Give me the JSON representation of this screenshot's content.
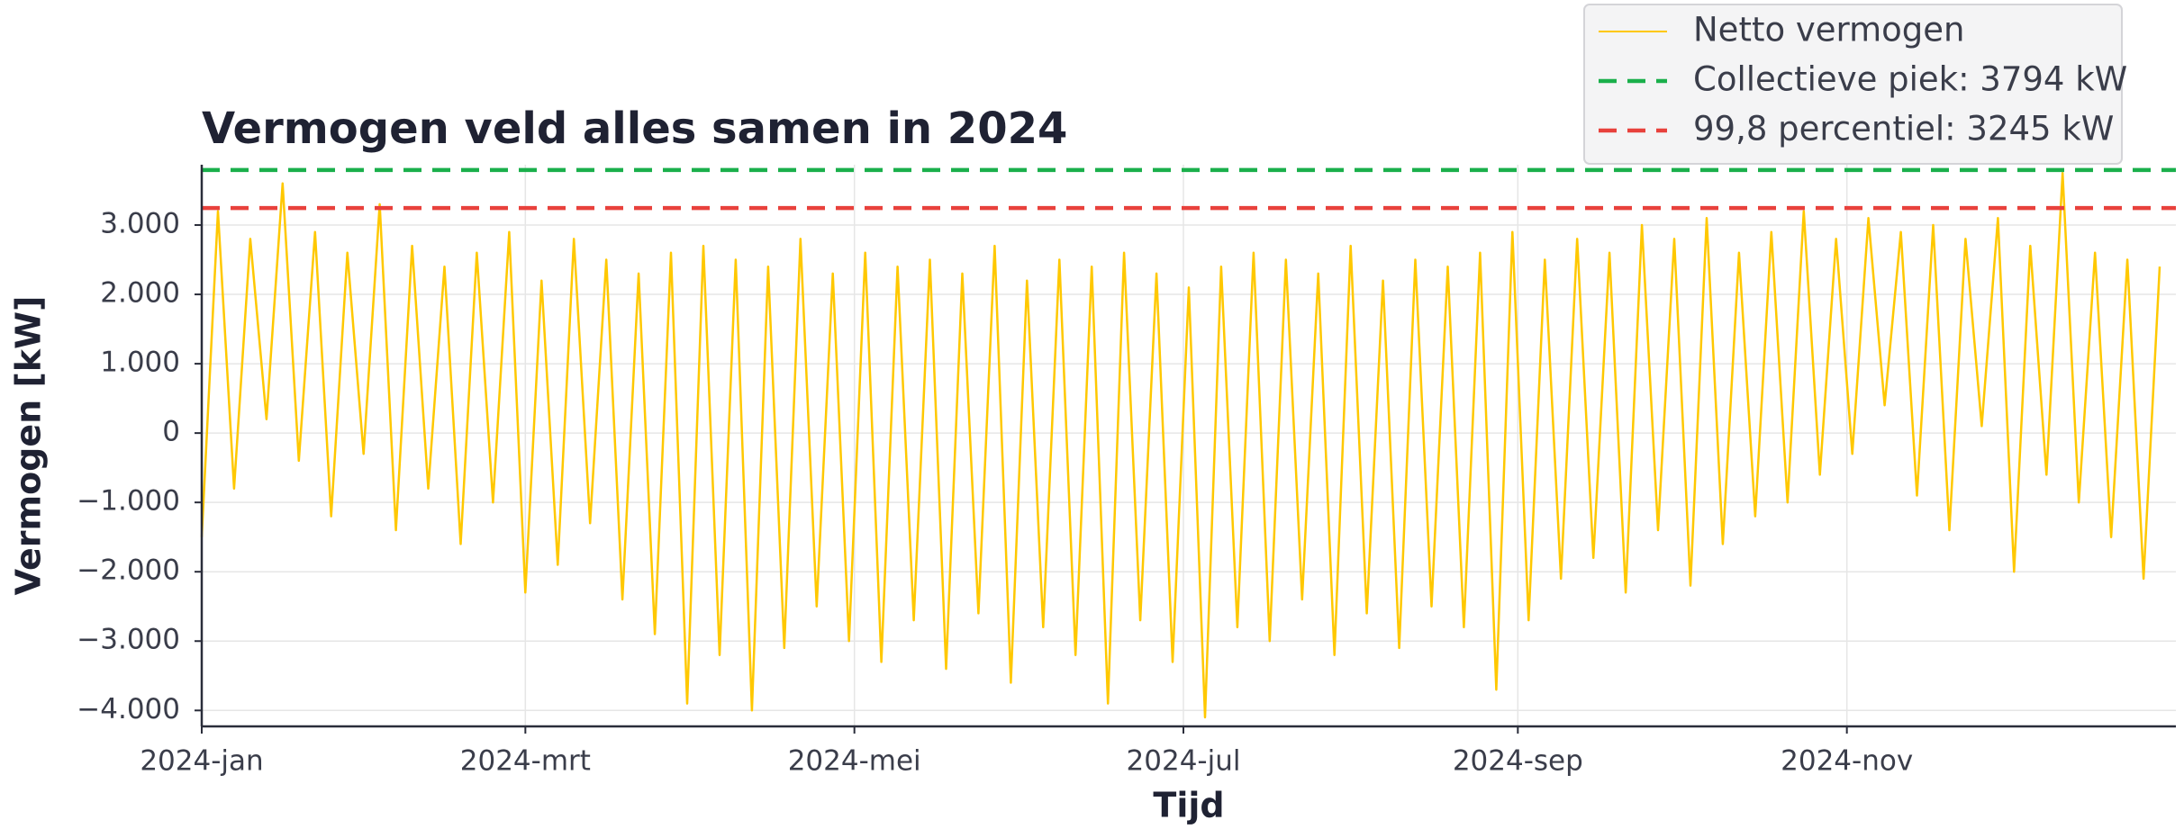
{
  "chart_data": {
    "type": "line",
    "title": "Vermogen veld alles samen in 2024",
    "x_label": "Tijd",
    "y_label": "Vermogen [kW]",
    "x": [
      0,
      3,
      6,
      9,
      12,
      15,
      18,
      21,
      24,
      27,
      30,
      33,
      36,
      39,
      42,
      45,
      48,
      51,
      54,
      57,
      60,
      63,
      66,
      69,
      72,
      75,
      78,
      81,
      84,
      87,
      90,
      93,
      96,
      99,
      102,
      105,
      108,
      111,
      114,
      117,
      120,
      123,
      126,
      129,
      132,
      135,
      138,
      141,
      144,
      147,
      150,
      153,
      156,
      159,
      162,
      165,
      168,
      171,
      174,
      177,
      180,
      183,
      186,
      189,
      192,
      195,
      198,
      201,
      204,
      207,
      210,
      213,
      216,
      219,
      222,
      225,
      228,
      231,
      234,
      237,
      240,
      243,
      246,
      249,
      252,
      255,
      258,
      261,
      264,
      267,
      270,
      273,
      276,
      279,
      282,
      285,
      288,
      291,
      294,
      297,
      300,
      303,
      306,
      309,
      312,
      315,
      318,
      321,
      324,
      327,
      330,
      333,
      336,
      339,
      342,
      345,
      348,
      351,
      354,
      357,
      360,
      363
    ],
    "series": [
      {
        "name": "Netto vermogen",
        "color": "#ffc800",
        "values": [
          -1500,
          3200,
          -800,
          2800,
          200,
          3600,
          -400,
          2900,
          -1200,
          2600,
          -300,
          3300,
          -1400,
          2700,
          -800,
          2400,
          -1600,
          2600,
          -1000,
          2900,
          -2300,
          2200,
          -1900,
          2800,
          -1300,
          2500,
          -2400,
          2300,
          -2900,
          2600,
          -3900,
          2700,
          -3200,
          2500,
          -4000,
          2400,
          -3100,
          2800,
          -2500,
          2300,
          -3000,
          2600,
          -3300,
          2400,
          -2700,
          2500,
          -3400,
          2300,
          -2600,
          2700,
          -3600,
          2200,
          -2800,
          2500,
          -3200,
          2400,
          -3900,
          2600,
          -2700,
          2300,
          -3300,
          2100,
          -4100,
          2400,
          -2800,
          2600,
          -3000,
          2500,
          -2400,
          2300,
          -3200,
          2700,
          -2600,
          2200,
          -3100,
          2500,
          -2500,
          2400,
          -2800,
          2600,
          -3700,
          2900,
          -2700,
          2500,
          -2100,
          2800,
          -1800,
          2600,
          -2300,
          3000,
          -1400,
          2800,
          -2200,
          3100,
          -1600,
          2600,
          -1200,
          2900,
          -1000,
          3200,
          -600,
          2800,
          -300,
          3100,
          400,
          2900,
          -900,
          3000,
          -1400,
          2800,
          100,
          3100,
          -2000,
          2700,
          -600,
          3750,
          -1000,
          2600,
          -1500,
          2500,
          -2100,
          2400
        ]
      }
    ],
    "reference_lines": [
      {
        "name": "Collectieve piek: 3794 kW",
        "value": 3794,
        "color": "#1aaf4b"
      },
      {
        "name": "99,8 percentiel: 3245 kW",
        "value": 3245,
        "color": "#e8413c"
      }
    ],
    "xlim": [
      0,
      366
    ],
    "xticks": [
      {
        "value": 0,
        "label": "2024-jan"
      },
      {
        "value": 60,
        "label": "2024-mrt"
      },
      {
        "value": 121,
        "label": "2024-mei"
      },
      {
        "value": 182,
        "label": "2024-jul"
      },
      {
        "value": 244,
        "label": "2024-sep"
      },
      {
        "value": 305,
        "label": "2024-nov"
      }
    ],
    "ylim": [
      -4230,
      3870
    ],
    "yticks": [
      {
        "value": -4000,
        "label": "−4.000"
      },
      {
        "value": -3000,
        "label": "−3.000"
      },
      {
        "value": -2000,
        "label": "−2.000"
      },
      {
        "value": -1000,
        "label": "−1.000"
      },
      0,
      {
        "value": 1000,
        "label": "1.000"
      },
      {
        "value": 2000,
        "label": "2.000"
      },
      {
        "value": 3000,
        "label": "3.000"
      }
    ],
    "grid": true,
    "legend": "upper right"
  }
}
